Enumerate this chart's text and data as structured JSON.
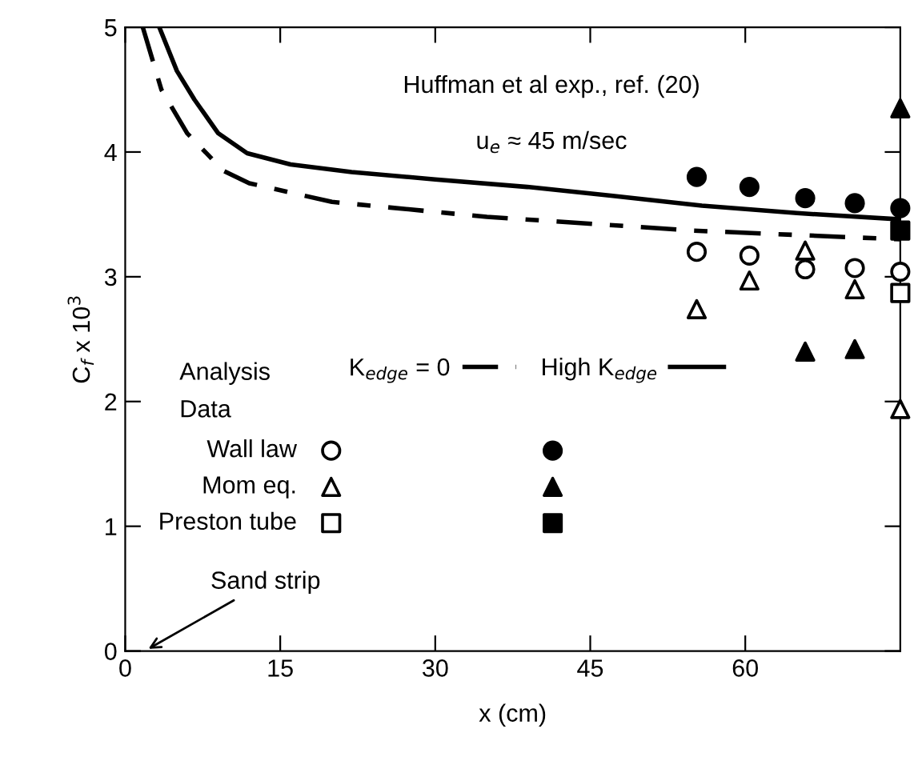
{
  "chart_data": {
    "type": "scatter",
    "xlabel": "x (cm)",
    "ylabel": "C$_{f}$ x 10$^{3}$",
    "xlim": [
      0,
      75
    ],
    "xticks": [
      0,
      15,
      30,
      45,
      60
    ],
    "ylim": [
      0,
      5
    ],
    "yticks": [
      0,
      1,
      2,
      3,
      4,
      5
    ],
    "grid": false,
    "legend": "bottom left",
    "series": [
      {
        "name": "K$_{edge}$ = 0",
        "type": "line",
        "line_style": "dashed",
        "marker": "none",
        "color": "#000000",
        "x": [
          1.7,
          3.5,
          6,
          9.5,
          12,
          20,
          35,
          55,
          75
        ],
        "values": [
          5,
          4.5,
          4.15,
          3.85,
          3.75,
          3.6,
          3.48,
          3.37,
          3.3
        ]
      },
      {
        "name": "High K$_{edge}$",
        "type": "line",
        "line_style": "solid",
        "marker": "none",
        "color": "#000000",
        "x": [
          3.3,
          5,
          6.7,
          9,
          11.8,
          16,
          21.9,
          30,
          38.9,
          47,
          55.8,
          65,
          75
        ],
        "values": [
          5,
          4.65,
          4.42,
          4.15,
          3.99,
          3.9,
          3.84,
          3.78,
          3.72,
          3.65,
          3.57,
          3.51,
          3.46
        ]
      },
      {
        "name": "Wall law",
        "marker": "circle",
        "color": "#ffffff",
        "x": [
          55.3,
          60.4,
          65.8,
          70.6,
          75
        ],
        "values": [
          3.2,
          3.17,
          3.06,
          3.07,
          3.04
        ]
      },
      {
        "name": "Mom eq.",
        "marker": "triangle",
        "color": "#ffffff",
        "x": [
          55.3,
          60.4,
          65.8,
          70.6,
          75
        ],
        "values": [
          2.74,
          2.97,
          3.21,
          2.9,
          1.94
        ]
      },
      {
        "name": "Preston tube",
        "marker": "square",
        "color": "#ffffff",
        "x": [
          75
        ],
        "values": [
          2.87
        ]
      },
      {
        "marker": "circle",
        "color": "#000000",
        "x": [
          55.3,
          60.4,
          65.8,
          70.6,
          75
        ],
        "values": [
          3.8,
          3.72,
          3.63,
          3.59,
          3.55
        ]
      },
      {
        "marker": "triangle",
        "color": "#000000",
        "x": [
          65.8,
          70.6,
          75
        ],
        "values": [
          2.4,
          2.42,
          4.35
        ]
      },
      {
        "marker": "square",
        "color": "#000000",
        "x": [
          75
        ],
        "values": [
          3.37
        ]
      }
    ],
    "annotations": [
      "Huffman et al exp., ref. (20)",
      "u$_{e}$ ≈ 45 m/sec",
      "Analysis",
      "Data",
      "Sand strip"
    ]
  }
}
